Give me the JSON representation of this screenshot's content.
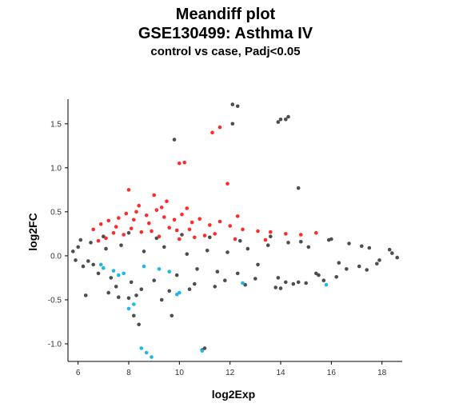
{
  "header": {
    "title": "Meandiff plot",
    "subtitle": "GSE130499: Asthma IV",
    "caption": "control vs case, Padj<0.05"
  },
  "chart_data": {
    "type": "scatter",
    "title": "Meandiff plot",
    "subtitle": "GSE130499: Asthma IV",
    "caption": "control vs case, Padj<0.05",
    "xlabel": "log2Exp",
    "ylabel": "log2FC",
    "xlim": [
      5.6,
      18.8
    ],
    "ylim": [
      -1.2,
      1.78
    ],
    "x_ticks": [
      6,
      8,
      10,
      12,
      14,
      16,
      18
    ],
    "y_ticks": [
      -1.0,
      -0.5,
      0.0,
      0.5,
      1.0,
      1.5
    ],
    "x_tick_labels": [
      "6",
      "8",
      "10",
      "12",
      "14",
      "16",
      "18"
    ],
    "y_tick_labels": [
      "-1.0",
      "-0.5",
      "0.0",
      "0.5",
      "1.0",
      "1.5"
    ],
    "grid": false,
    "colors": {
      "not_significant": "#4d4d4d",
      "up": "#ff2a2a",
      "down": "#1eb8e6"
    },
    "series": [
      {
        "group": "up",
        "x": [
          11.3,
          11.6,
          10.0,
          10.2,
          8.0,
          9.0,
          11.9,
          8.4,
          9.5,
          10.3,
          12.3,
          6.6,
          6.9,
          7.2,
          7.6,
          7.9,
          8.3,
          8.7,
          9.1,
          9.4,
          9.8,
          10.1,
          10.5,
          10.8,
          11.2,
          11.6,
          12.0,
          12.5,
          13.1,
          13.6,
          14.2,
          14.8,
          15.4,
          7.1,
          7.8,
          8.5,
          9.2,
          9.9,
          10.6,
          11.4,
          12.2,
          13.4,
          6.8,
          7.5,
          8.1,
          8.8,
          9.6,
          10.4,
          11.0,
          8.2,
          8.9,
          9.3,
          10.0,
          7.4
        ],
        "y": [
          1.4,
          1.46,
          1.05,
          1.06,
          0.75,
          0.69,
          0.82,
          0.57,
          0.62,
          0.54,
          0.45,
          0.3,
          0.36,
          0.4,
          0.43,
          0.48,
          0.5,
          0.46,
          0.52,
          0.44,
          0.41,
          0.47,
          0.38,
          0.42,
          0.35,
          0.39,
          0.34,
          0.3,
          0.28,
          0.27,
          0.25,
          0.24,
          0.26,
          0.2,
          0.24,
          0.27,
          0.22,
          0.29,
          0.21,
          0.25,
          0.19,
          0.18,
          0.17,
          0.33,
          0.31,
          0.37,
          0.32,
          0.3,
          0.23,
          0.41,
          0.28,
          0.55,
          0.19,
          0.26
        ]
      },
      {
        "group": "down",
        "x": [
          8.5,
          8.7,
          8.9,
          10.9,
          8.0,
          8.2,
          10.0,
          9.9,
          15.8,
          12.5,
          7.0,
          7.4,
          7.8,
          8.6,
          9.2,
          9.6,
          6.9,
          7.6
        ],
        "y": [
          -1.05,
          -1.1,
          -1.15,
          -1.08,
          -0.6,
          -0.55,
          -0.42,
          -0.44,
          -0.33,
          -0.31,
          -0.14,
          -0.17,
          -0.2,
          -0.12,
          -0.15,
          -0.18,
          -0.1,
          -0.22
        ]
      },
      {
        "group": "not_significant",
        "x": [
          12.1,
          12.3,
          12.1,
          14.0,
          14.2,
          14.3,
          13.9,
          9.8,
          14.7,
          10.9,
          11.0,
          8.4,
          8.2,
          9.7,
          8.0,
          7.6,
          6.3,
          5.8,
          5.9,
          6.0,
          6.2,
          6.5,
          6.8,
          7.1,
          7.3,
          7.7,
          8.1,
          8.6,
          9.0,
          9.4,
          9.9,
          10.3,
          10.7,
          11.1,
          11.5,
          11.9,
          12.3,
          12.7,
          13.1,
          13.5,
          13.9,
          14.3,
          14.7,
          15.1,
          15.5,
          15.9,
          16.3,
          16.7,
          17.1,
          17.5,
          17.9,
          18.3,
          18.6,
          6.1,
          6.6,
          7.0,
          7.5,
          8.0,
          8.5,
          9.1,
          9.6,
          10.1,
          10.6,
          11.2,
          11.8,
          12.4,
          13.0,
          13.6,
          14.2,
          14.8,
          15.4,
          16.0,
          16.6,
          17.2,
          17.8,
          18.4,
          6.4,
          7.2,
          8.3,
          9.3,
          10.4,
          11.4,
          12.6,
          13.8,
          15.0,
          16.2,
          17.4,
          14.5,
          14.0,
          15.7
        ],
        "y": [
          1.72,
          1.7,
          1.5,
          1.55,
          1.55,
          1.58,
          1.52,
          1.32,
          0.77,
          -1.07,
          -1.05,
          -0.78,
          -0.68,
          -0.68,
          -0.48,
          -0.47,
          -0.45,
          0.05,
          -0.05,
          0.1,
          -0.12,
          0.15,
          -0.2,
          0.08,
          -0.25,
          0.12,
          -0.3,
          0.05,
          -0.28,
          0.1,
          -0.22,
          0.02,
          -0.15,
          0.06,
          -0.18,
          0.04,
          -0.2,
          0.08,
          -0.1,
          0.12,
          -0.25,
          0.15,
          -0.3,
          0.1,
          -0.22,
          0.18,
          -0.08,
          0.14,
          -0.12,
          0.09,
          -0.05,
          0.07,
          -0.02,
          0.18,
          -0.1,
          0.22,
          -0.35,
          0.26,
          -0.38,
          0.2,
          -0.4,
          0.24,
          -0.32,
          0.21,
          -0.28,
          0.17,
          -0.26,
          0.22,
          -0.3,
          0.16,
          -0.2,
          0.19,
          -0.15,
          0.11,
          -0.09,
          0.03,
          -0.06,
          -0.42,
          -0.45,
          -0.5,
          -0.38,
          -0.35,
          -0.33,
          -0.36,
          -0.31,
          -0.24,
          -0.16,
          -0.32,
          -0.37,
          -0.28
        ]
      }
    ]
  }
}
